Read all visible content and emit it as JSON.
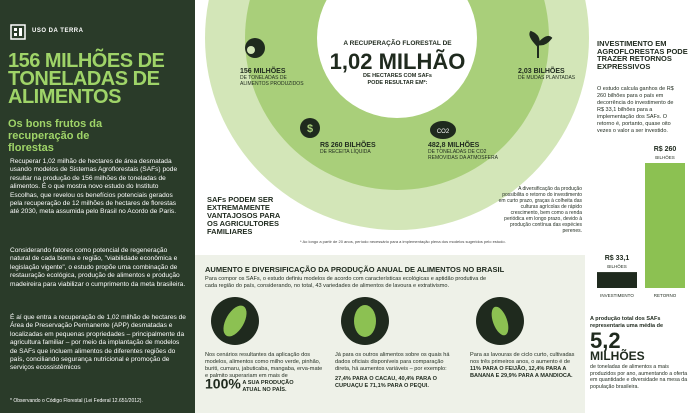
{
  "left": {
    "tag": "USO DA TERRA",
    "title": "156 MILHÕES DE TONELADAS DE ALIMENTOS",
    "subtitle": "Os bons frutos da recuperação de florestas",
    "paragraphs": [
      "Recuperar 1,02 milhão de hectares de área desmatada usando modelos de Sistemas Agroflorestais (SAFs) pode resultar na produção de 156 milhões de toneladas de alimentos. É o que mostra novo estudo do Instituto Escolhas, que revelou os benefícios potenciais gerados pela recuperação de 12 milhões de hectares de florestas até 2030, meta assumida pelo Brasil no Acordo de Paris.",
      "Considerando fatores como potencial de regeneração natural de cada bioma e região, \"viabilidade econômica e legislação vigente\", o estudo propõe uma combinação de restauração ecológica, produção de alimentos e produção madeireira para viabilizar o cumprimento da meta brasileira.",
      "É aí que entra a recuperação de 1,02 milhão de hectares de Área de Preservação Permanente (APP) desmatadas e localizadas em pequenas propriedades – principalmente da agricultura familiar – por meio da implantação de modelos de SAFs que incluem alimentos de diferentes regiões do país, conciliando segurança nutricional e promoção de serviços ecossistêmicos"
    ],
    "footnote": "* Observando o Código Florestal (Lei Federal 12.651/2012)."
  },
  "recovery": {
    "intro": "A RECUPERAÇÃO FLORESTAL DE",
    "headline": "1,02 MILHÃO",
    "outro": "DE HECTARES COM SAFs PODE RESULTAR EM*:",
    "items": [
      {
        "value": "156 MILHÕES",
        "text": "DE TONELADAS DE ALIMENTOS PRODUZIDOS"
      },
      {
        "value": "2,03 BILHÕES",
        "text": "DE MUDAS PLANTADAS"
      },
      {
        "value": "R$ 260 BILHÕES",
        "text": "DE RECEITA LÍQUIDA"
      },
      {
        "value": "482,8 MILHÕES",
        "text": "DE TONELADAS DE CO2 REMOVIDAS DA ATMOSFERA"
      }
    ],
    "co2_icon": "CO2",
    "callout": "SAFs PODEM SER EXTREMAMENTE VANTAJOSOS PARA OS AGRICULTORES FAMILIARES",
    "note": "A diversificação da produção possibilita o retorno do investimento em curto prazo, graças à colheita das culturas agrícolas de rápido crescimento, bem como a renda periódica em longo prazo, devido à produção contínua das espécies perenes.",
    "footnote": "* Ao longo a partir de 20 anos, período necessário para a implementação plena dos modelos sugeridos pelo estudo."
  },
  "production": {
    "heading": "AUMENTO E DIVERSIFICAÇÃO DA PRODUÇÃO ANUAL DE ALIMENTOS NO BRASIL",
    "intro": "Para compor os SAFs, o estudo definiu modelos de acordo com características ecológicas e aptidão produtiva de cada região do país, considerando, no total, 43 variedades de alimentos de lavoura e extrativismo.",
    "columns": [
      {
        "text": "Nos cenários resultantes da aplicação dos modelos, alimentos como milho verde, pinhão, buriti, cumaru, jabuticaba, mangaba, erva-mate e palmito superariam em mais de",
        "highlight": "100%",
        "tail": "A SUA PRODUÇÃO ATUAL NO PAÍS."
      },
      {
        "text": "Já para os outros alimentos sobre os quais há dados oficiais disponíveis para comparação direta, há aumentos variáveis – por exemplo:",
        "tail": "27,4% PARA O CACAU, 40,4% PARA O CUPUAÇU E 71,1% PARA O PEQUI."
      },
      {
        "text": "Para as lavouras de ciclo curto, cultivadas nos três primeiros anos, o aumento é de",
        "tail": "11% PARA O FEIJÃO, 12,4% PARA A BANANA E 29,9% PARA A MANDIOCA."
      }
    ]
  },
  "investment": {
    "heading": "INVESTIMENTO EM AGROFLORESTAS PODE TRAZER RETORNOS EXPRESSIVOS",
    "text": "O estudo calcula ganhos de R$ 260 bilhões para o país em decorrência do investimento de R$ 33,1 bilhões para a implementação dos SAFs. O retorno é, portanto, quase oito vezes o valor a ser investido.",
    "bars": [
      {
        "name": "INVESTIMENTO",
        "value": 33.1,
        "label": "R$ 33,1",
        "unit": "BILHÕES",
        "color": "#1f2a1e"
      },
      {
        "name": "RETORNO",
        "value": 260,
        "label": "R$ 260",
        "unit": "BILHÕES",
        "color": "#8cc152"
      }
    ],
    "summary_intro": "A produção total dos SAFs representaria uma média de",
    "summary_value": "5,2",
    "summary_unit": "MILHÕES",
    "summary_text": "de toneladas de alimentos a mais produzidos por ano, aumentando a oferta em quantidade e diversidade na mesa da população brasileira."
  }
}
